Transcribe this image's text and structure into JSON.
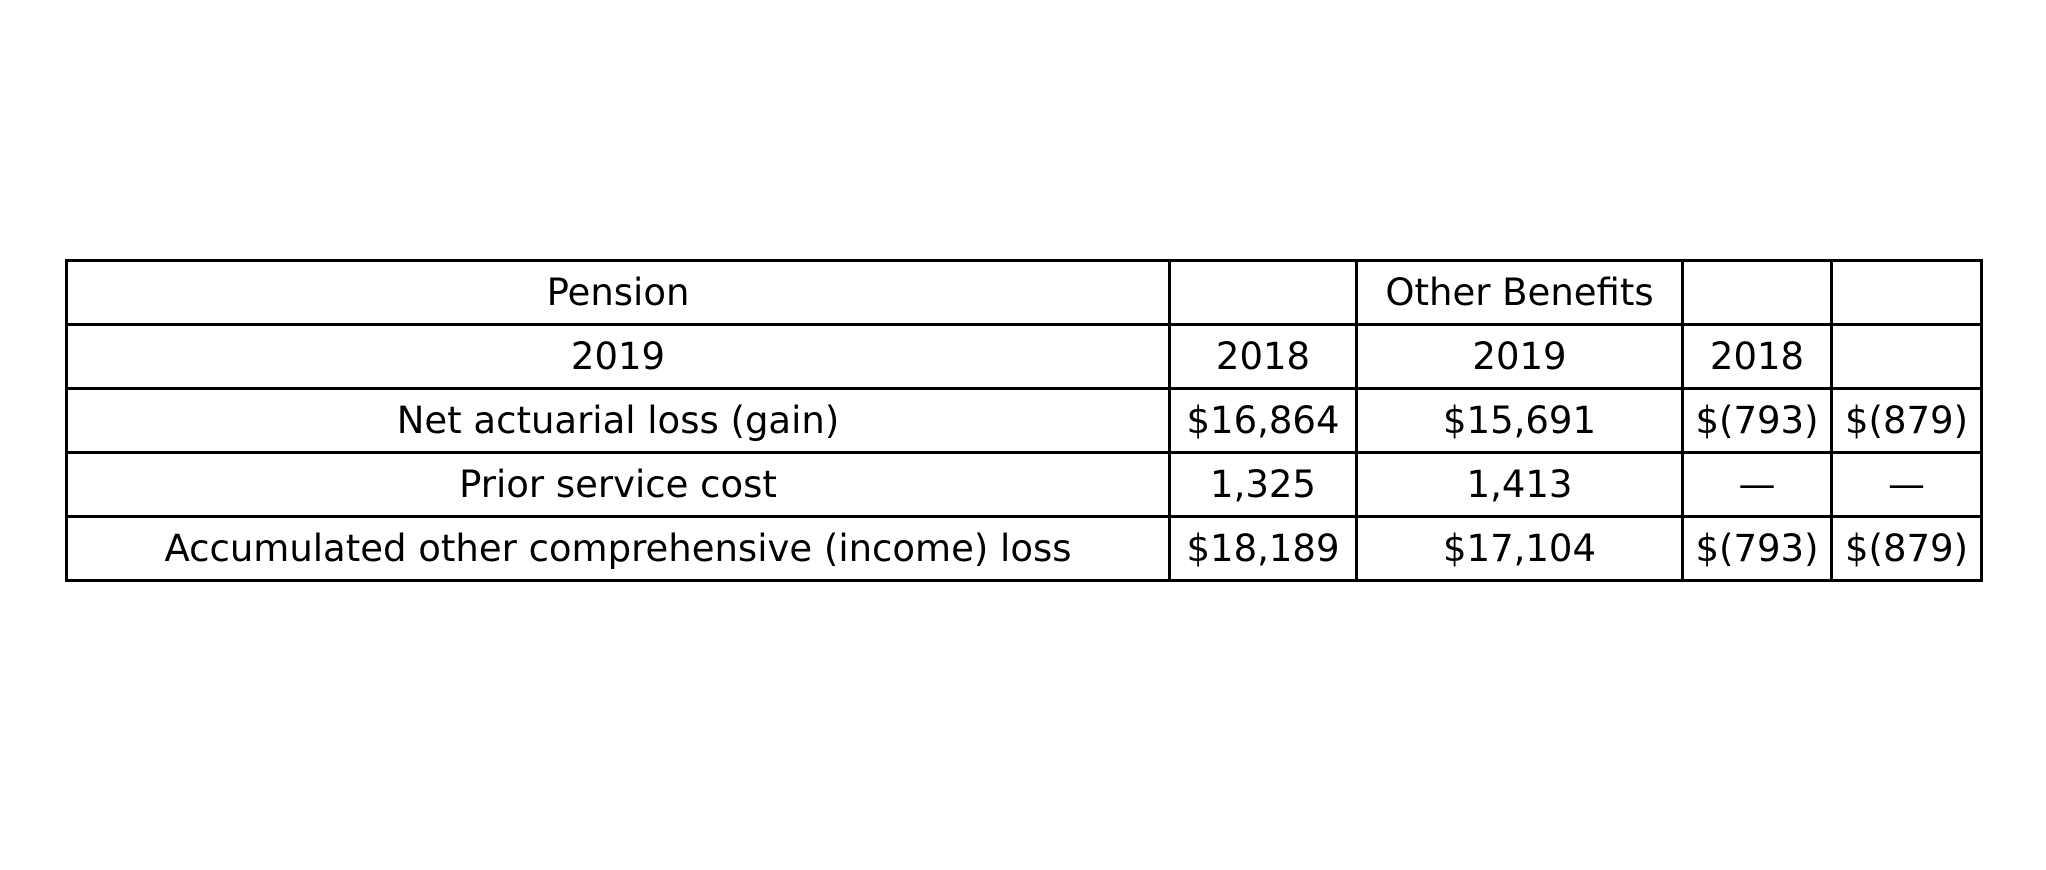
{
  "table": {
    "rows": [
      [
        "Pension",
        "",
        "Other Benefits",
        "",
        ""
      ],
      [
        "2019",
        "2018",
        "2019",
        "2018",
        ""
      ],
      [
        "Net actuarial loss (gain)",
        "$16,864",
        "$15,691",
        "$(793)",
        "$(879)"
      ],
      [
        "Prior service cost",
        "1,325",
        "1,413",
        "—",
        "—"
      ],
      [
        "Accumulated other comprehensive (income) loss",
        "$18,189",
        "$17,104",
        "$(793)",
        "$(879)"
      ]
    ]
  }
}
